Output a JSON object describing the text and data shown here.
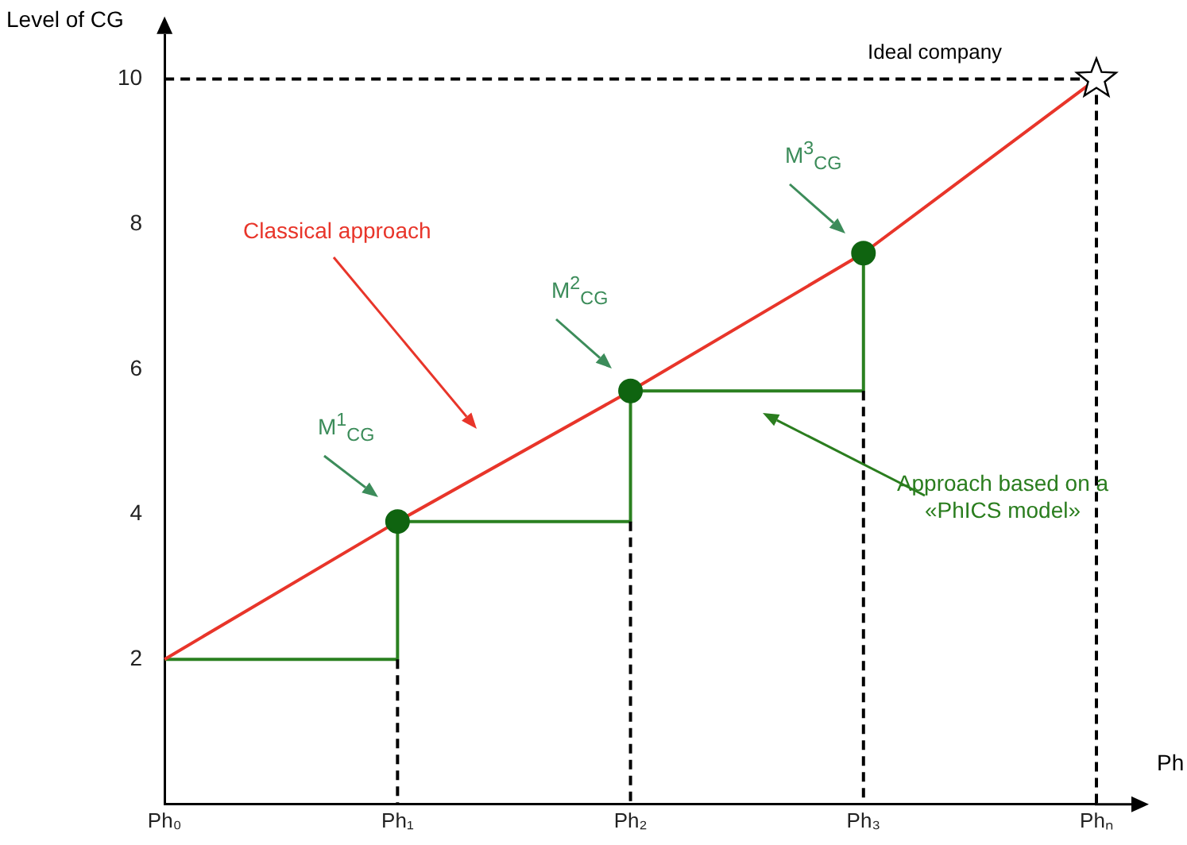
{
  "chart_data": {
    "type": "line",
    "ylabel": "Level of CG",
    "xlabel": "Ph",
    "categories": [
      "Ph₀",
      "Ph₁",
      "Ph₂",
      "Ph₃",
      "Phₙ"
    ],
    "ylim": [
      0,
      10.6
    ],
    "yticks": [
      2,
      4,
      6,
      8,
      10
    ],
    "grid": false,
    "legend": false,
    "series": [
      {
        "type": "line",
        "color": "#000000",
        "line_style": "dashed",
        "marker": "none",
        "x": [
          "Ph₀",
          "Phₙ"
        ],
        "values": [
          10,
          10
        ]
      },
      {
        "type": "line",
        "color": "#000000",
        "line_style": "dashed",
        "marker": "none",
        "x": [
          "Ph₁",
          "Ph₁"
        ],
        "values": [
          2,
          0
        ]
      },
      {
        "type": "line",
        "color": "#000000",
        "line_style": "dashed",
        "marker": "none",
        "x": [
          "Ph₂",
          "Ph₂"
        ],
        "values": [
          3.9,
          0
        ]
      },
      {
        "type": "line",
        "color": "#000000",
        "line_style": "dashed",
        "marker": "none",
        "x": [
          "Ph₃",
          "Ph₃"
        ],
        "values": [
          5.7,
          0
        ]
      },
      {
        "type": "line",
        "color": "#000000",
        "line_style": "dashed",
        "marker": "none",
        "x": [
          "Phₙ",
          "Phₙ"
        ],
        "values": [
          10,
          0
        ]
      },
      {
        "type": "line",
        "color": "#e8352a",
        "line_style": "solid",
        "marker": "none",
        "values": [
          2,
          3.9,
          5.7,
          7.6,
          10
        ]
      },
      {
        "type": "line",
        "color": "#2a8020",
        "line_style": "solid",
        "marker": "none",
        "x": [
          "Ph₀",
          "Ph₁",
          "Ph₁",
          "Ph₂",
          "Ph₂",
          "Ph₃",
          "Ph₃"
        ],
        "values": [
          2,
          2,
          3.9,
          3.9,
          5.7,
          5.7,
          7.6
        ]
      },
      {
        "type": "scatter",
        "color": "#0f6410",
        "marker": "circle",
        "values": [
          null,
          3.9,
          5.7,
          7.6,
          null
        ]
      },
      {
        "type": "scatter",
        "color": "#000000",
        "marker": "star",
        "values": [
          null,
          null,
          null,
          null,
          10
        ]
      }
    ],
    "annotations": [
      "Ideal company",
      "Classical approach",
      "Approach based on a «PhICS model»",
      "M$^{1}$$_{CG}$",
      "M$^{2}$$_{CG}$",
      "M$^{3}$$_{CG}$"
    ]
  }
}
